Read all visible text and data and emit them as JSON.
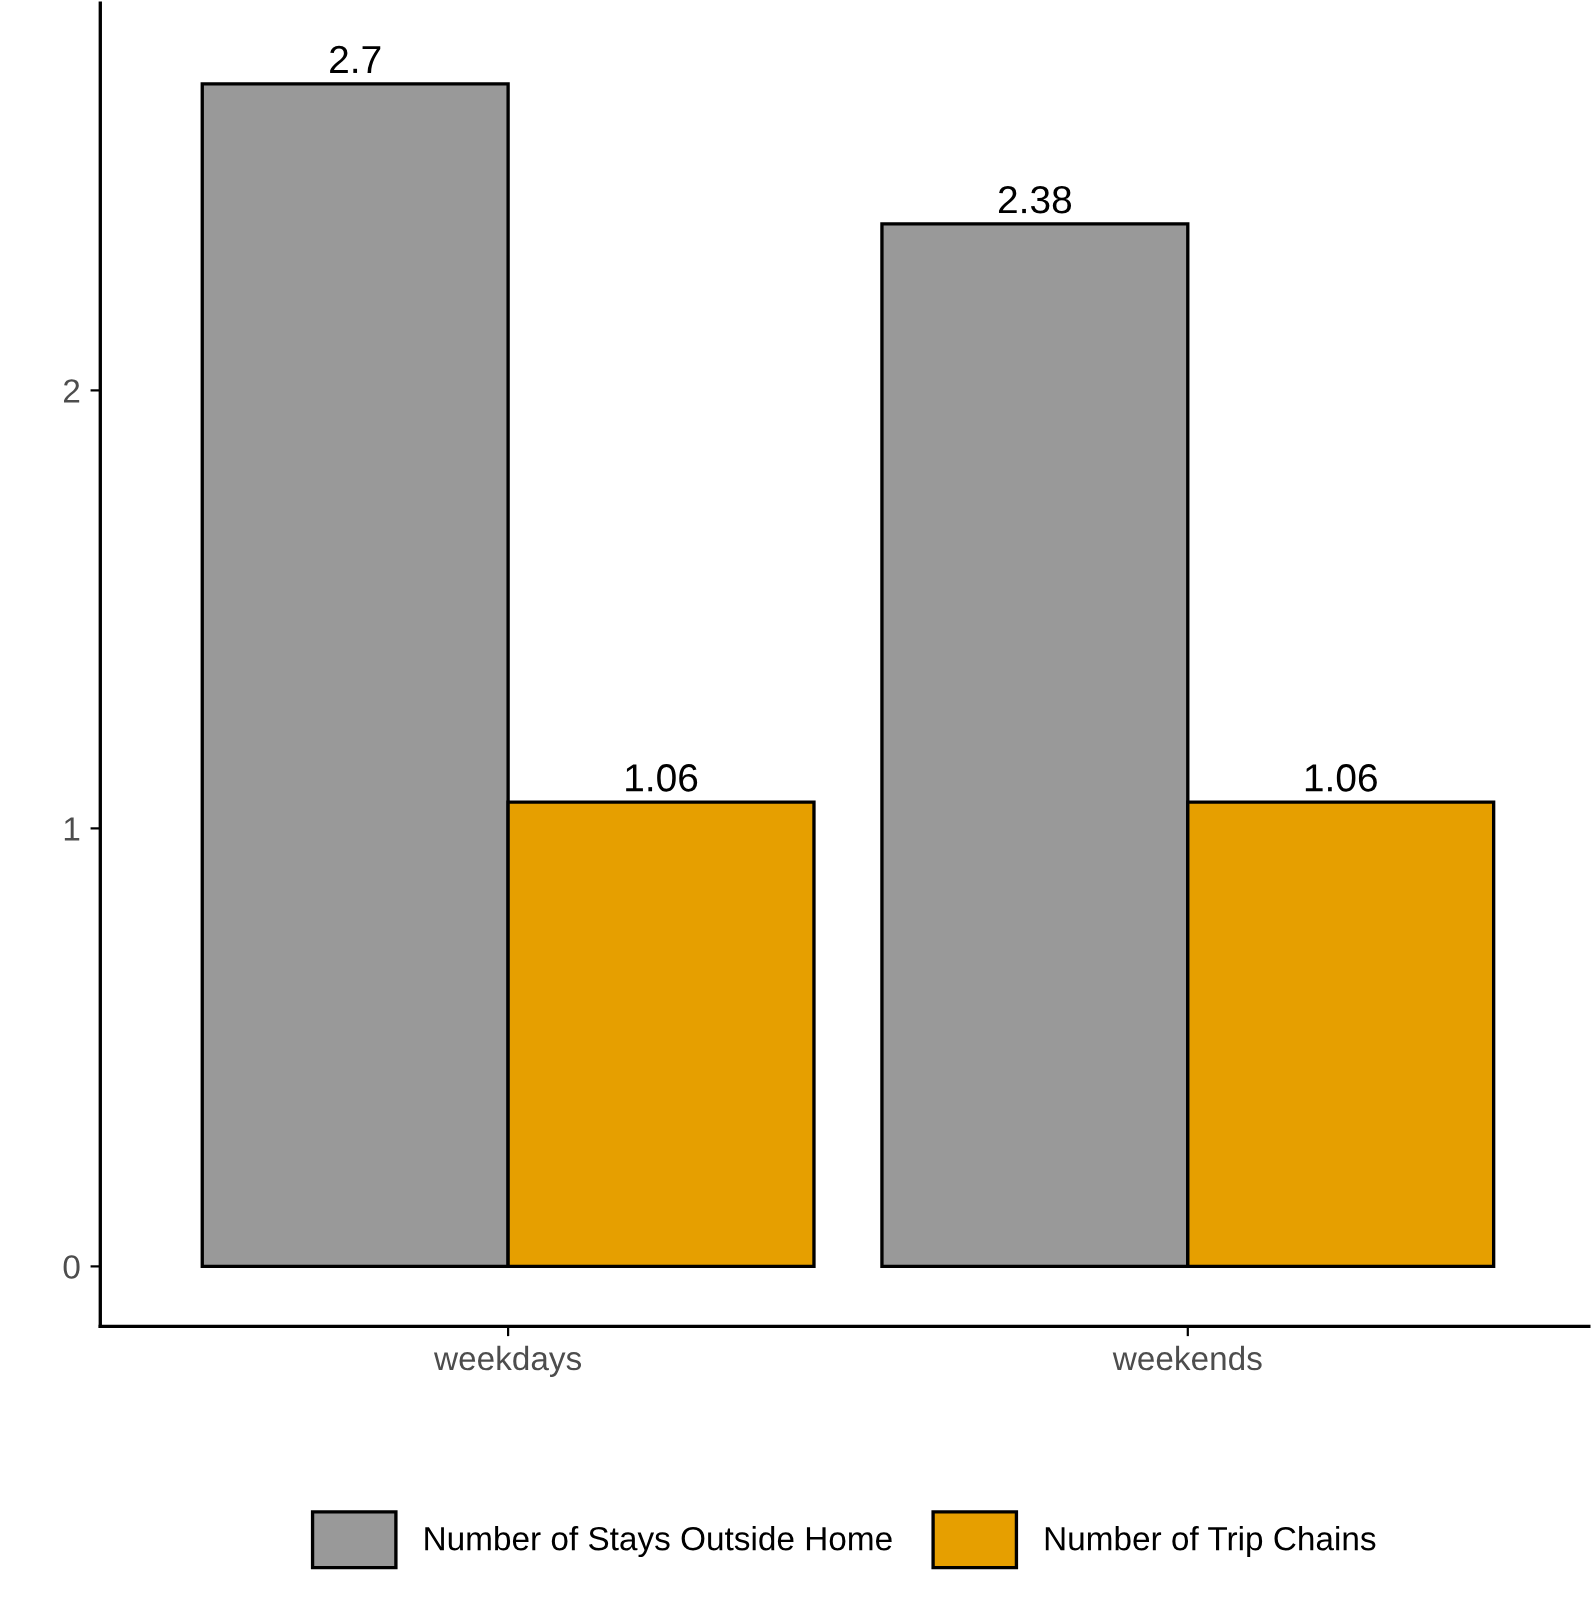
{
  "chart_data": {
    "type": "bar",
    "categories": [
      "weekdays",
      "weekends"
    ],
    "series": [
      {
        "name": "Number of Stays Outside Home",
        "color": "#999999",
        "values": [
          2.7,
          2.38
        ]
      },
      {
        "name": "Number of Trip Chains",
        "color": "#e69f00",
        "values": [
          1.06,
          1.06
        ]
      }
    ],
    "ylim": [
      -0.137,
      2.884
    ],
    "yticks": [
      0,
      1,
      2
    ],
    "grid": false,
    "legend": "bottom",
    "data_labels": true
  }
}
